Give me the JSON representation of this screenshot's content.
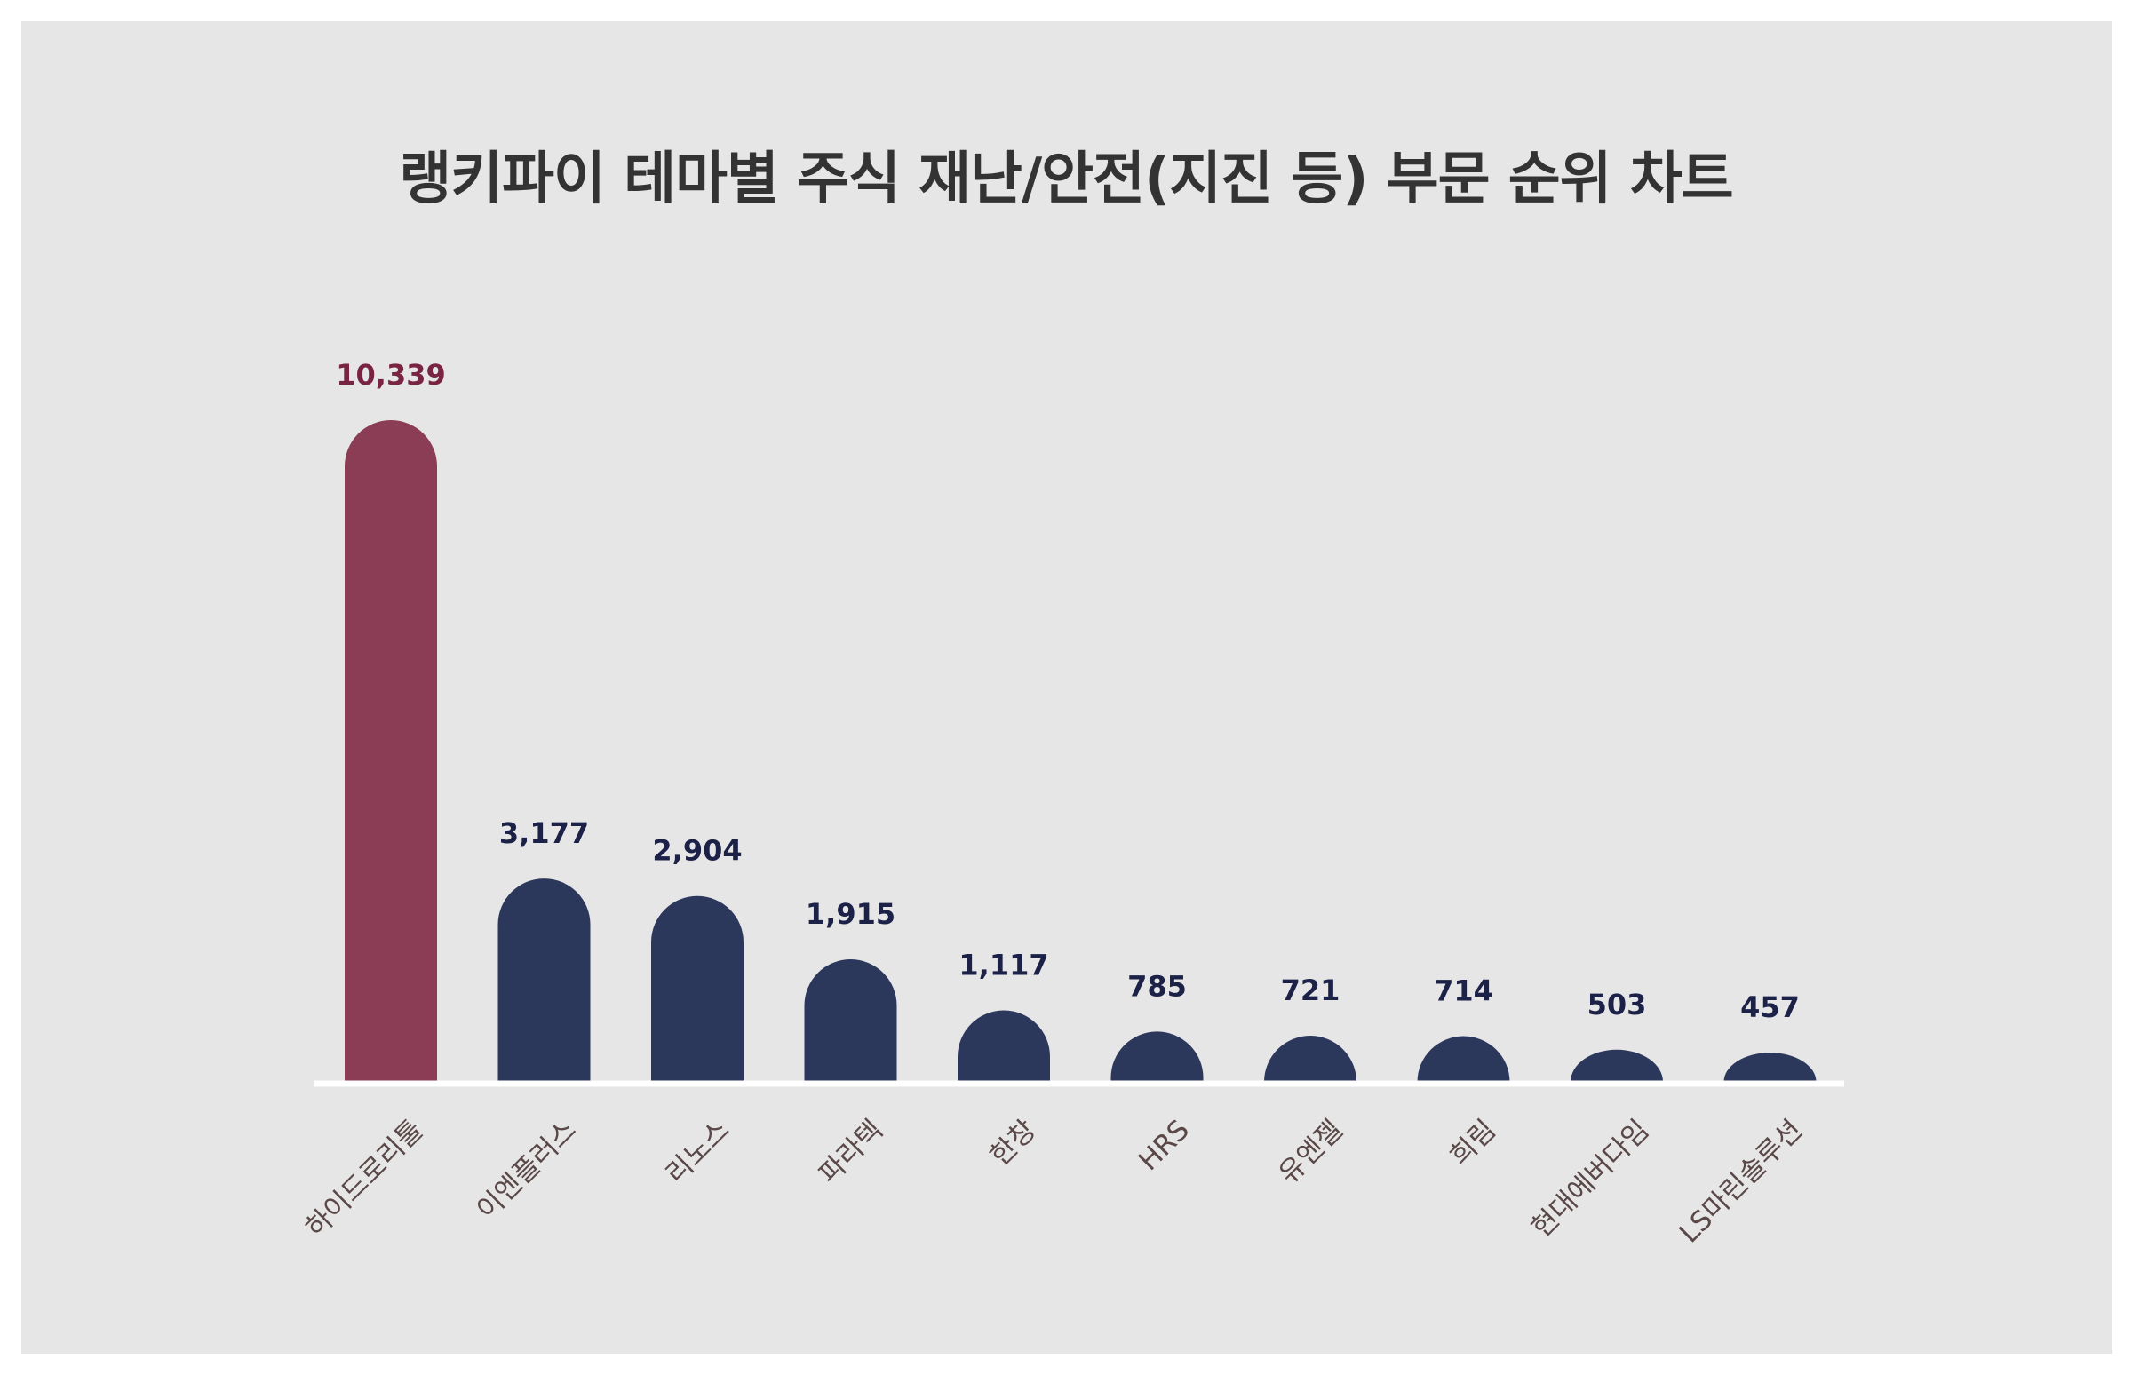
{
  "chart_data": {
    "type": "bar",
    "title": "랭키파이 테마별 주식 재난/안전(지진 등) 부문 순위 차트",
    "categories": [
      "하이드로리툴",
      "이엔플러스",
      "리노스",
      "파라텍",
      "한창",
      "HRS",
      "유엔젤",
      "희림",
      "현대에버다임",
      "LS마린솔루션"
    ],
    "values": [
      10339,
      3177,
      2904,
      1915,
      1117,
      785,
      721,
      714,
      503,
      457
    ],
    "value_labels": [
      "10,339",
      "3,177",
      "2,904",
      "1,915",
      "1,117",
      "785",
      "721",
      "714",
      "503",
      "457"
    ],
    "ylim": [
      0,
      10339
    ],
    "grid": false,
    "legend": "none"
  },
  "colors": {
    "background": "#e6e6e6",
    "highlight_bar": "#8b3d56",
    "bar": "#2c375c",
    "highlight_label": "#7a2443",
    "value_label": "#1c2147",
    "tick_label": "#5a4848",
    "title": "#333333",
    "baseline": "#ffffff"
  }
}
